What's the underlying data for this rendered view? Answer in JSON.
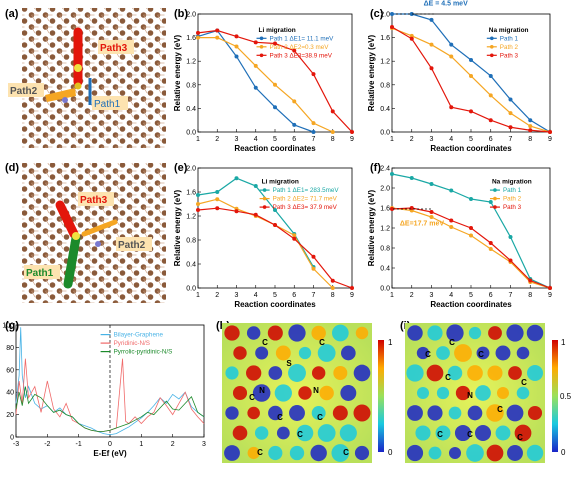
{
  "panel_labels": [
    "(a)",
    "(b)",
    "(c)",
    "(d)",
    "(e)",
    "(f)",
    "(g)",
    "(h)",
    "(i)"
  ],
  "colors": {
    "teal": "#1aa8a5",
    "orange": "#f5a623",
    "red": "#e3160b",
    "blue": "#1f6fb8",
    "dos_blue": "#49b3e6",
    "dos_red": "#f06a6a",
    "dos_green": "#1c8a2b"
  },
  "structure_a": {
    "labels": [
      "Path3",
      "Path2",
      "Path1"
    ]
  },
  "structure_d": {
    "labels": [
      "Path3",
      "Path2",
      "Path1"
    ]
  },
  "contour_h": {
    "atom_labels": [
      "C",
      "S",
      "C",
      "C",
      "N",
      "N",
      "C",
      "C",
      "C",
      "C",
      "C"
    ],
    "colorbar_ticks": [
      "1",
      "0"
    ]
  },
  "contour_i": {
    "atom_labels": [
      "C",
      "C",
      "C",
      "C",
      "N",
      "C",
      "C",
      "C",
      "C",
      "C"
    ],
    "colorbar_ticks": [
      "1",
      "0.5",
      "0"
    ]
  },
  "chart_data": [
    {
      "id": "b",
      "type": "line",
      "title": "",
      "xlabel": "Reaction coordinates",
      "ylabel": "Relative energy (eV)",
      "legend_title": "Li migration",
      "x": [
        1,
        2,
        3,
        4,
        5,
        6,
        7,
        8,
        9
      ],
      "xlim": [
        1,
        9
      ],
      "ylim": [
        0,
        2.0
      ],
      "yticks": [
        0,
        0.4,
        0.8,
        1.2,
        1.6,
        2.0
      ],
      "series": [
        {
          "name": "Path 1 ΔE1= 11.1 meV",
          "color": "blue",
          "x": [
            1,
            2,
            3,
            4,
            5,
            6,
            7
          ],
          "values": [
            1.62,
            1.72,
            1.28,
            0.75,
            0.42,
            0.12,
            0.0
          ]
        },
        {
          "name": "Path 2 ΔE2=0.3 meV",
          "color": "orange",
          "x": [
            1,
            2,
            3,
            4,
            5,
            6,
            7,
            8
          ],
          "values": [
            1.6,
            1.6,
            1.45,
            1.12,
            0.8,
            0.52,
            0.15,
            0.0
          ]
        },
        {
          "name": "Path 3 ΔE3=38.9 meV",
          "color": "red",
          "x": [
            1,
            2,
            3,
            4,
            5,
            6,
            7,
            8,
            9
          ],
          "values": [
            1.68,
            1.72,
            1.62,
            1.52,
            1.5,
            1.38,
            0.98,
            0.35,
            0.0
          ]
        }
      ]
    },
    {
      "id": "c",
      "type": "line",
      "title": "",
      "xlabel": "Reaction coordinates",
      "ylabel": "Relative energy (eV)",
      "legend_title": "Na migration",
      "annotation": "ΔE = 4.5 meV",
      "x": [
        1,
        2,
        3,
        4,
        5,
        6,
        7,
        8,
        9
      ],
      "xlim": [
        1,
        9
      ],
      "ylim": [
        0,
        2.0
      ],
      "yticks": [
        0,
        0.4,
        0.8,
        1.2,
        1.6,
        2.0
      ],
      "series": [
        {
          "name": "Path 1",
          "color": "blue",
          "x": [
            1,
            2,
            3,
            4,
            5,
            6,
            7,
            8,
            9
          ],
          "values": [
            2.0,
            2.0,
            1.9,
            1.48,
            1.22,
            0.95,
            0.55,
            0.2,
            0.0
          ]
        },
        {
          "name": "Path 2",
          "color": "orange",
          "x": [
            1,
            2,
            3,
            4,
            5,
            6,
            7,
            8,
            9
          ],
          "values": [
            1.76,
            1.63,
            1.48,
            1.28,
            0.95,
            0.62,
            0.32,
            0.1,
            0.0
          ]
        },
        {
          "name": "Path 3",
          "color": "red",
          "x": [
            1,
            2,
            3,
            4,
            5,
            6,
            7,
            8,
            9
          ],
          "values": [
            1.78,
            1.58,
            1.08,
            0.42,
            0.35,
            0.2,
            0.08,
            0.03,
            0.0
          ]
        }
      ]
    },
    {
      "id": "e",
      "type": "line",
      "title": "",
      "xlabel": "Reaction coordinates",
      "ylabel": "Relative energy (eV)",
      "legend_title": "Li migration",
      "x": [
        1,
        2,
        3,
        4,
        5,
        6,
        7,
        8,
        9
      ],
      "xlim": [
        1,
        9
      ],
      "ylim": [
        0,
        2.0
      ],
      "yticks": [
        0,
        0.4,
        0.8,
        1.2,
        1.6,
        2.0
      ],
      "series": [
        {
          "name": "Path 1 ΔE1= 283.5meV",
          "color": "teal",
          "x": [
            1,
            2,
            3,
            4,
            5,
            6,
            7
          ],
          "values": [
            1.55,
            1.6,
            1.83,
            1.7,
            1.3,
            0.9,
            0.35
          ]
        },
        {
          "name": "Path 2 ΔE2= 71.7 meV",
          "color": "orange",
          "x": [
            1,
            2,
            3,
            4,
            5,
            6,
            7,
            8
          ],
          "values": [
            1.4,
            1.48,
            1.32,
            1.2,
            1.05,
            0.88,
            0.32,
            0.0
          ]
        },
        {
          "name": "Path 3 ΔE3= 37.9 meV",
          "color": "red",
          "x": [
            1,
            2,
            3,
            4,
            5,
            6,
            7,
            8,
            9
          ],
          "values": [
            1.3,
            1.33,
            1.28,
            1.22,
            1.05,
            0.82,
            0.52,
            0.12,
            0.0
          ]
        }
      ]
    },
    {
      "id": "f",
      "type": "line",
      "title": "",
      "xlabel": "Reaction coordinates",
      "ylabel": "Relative energy (eV)",
      "legend_title": "Na migration",
      "annotation": "ΔE=17.7 meV",
      "x": [
        1,
        2,
        3,
        4,
        5,
        6,
        7,
        8,
        9
      ],
      "xlim": [
        1,
        9
      ],
      "ylim": [
        0,
        2.4
      ],
      "yticks": [
        0,
        0.4,
        0.8,
        1.2,
        1.6,
        2.0,
        2.4
      ],
      "series": [
        {
          "name": "Path 1",
          "color": "teal",
          "x": [
            1,
            2,
            3,
            4,
            5,
            6,
            7,
            8,
            9
          ],
          "values": [
            2.28,
            2.2,
            2.08,
            1.95,
            1.78,
            1.72,
            1.02,
            0.18,
            0.0
          ]
        },
        {
          "name": "Path 2",
          "color": "orange",
          "x": [
            1,
            2,
            3,
            4,
            5,
            6,
            7,
            8,
            9
          ],
          "values": [
            1.6,
            1.55,
            1.42,
            1.22,
            1.05,
            0.78,
            0.52,
            0.12,
            0.0
          ]
        },
        {
          "name": "Path 3",
          "color": "red",
          "x": [
            1,
            2,
            3,
            4,
            5,
            6,
            7,
            8,
            9
          ],
          "values": [
            1.58,
            1.6,
            1.52,
            1.35,
            1.2,
            0.9,
            0.55,
            0.15,
            0.0
          ]
        }
      ]
    },
    {
      "id": "g",
      "type": "line",
      "title": "",
      "xlabel": "E-Ef (eV)",
      "ylabel": "DOS",
      "xlim": [
        -3,
        3
      ],
      "ylim": [
        0,
        100
      ],
      "xticks": [
        -3,
        -2,
        -1,
        0,
        1,
        2,
        3
      ],
      "yticks": [
        0,
        20,
        40,
        60,
        80,
        100
      ],
      "series": [
        {
          "name": "Bilayer-Graphene",
          "color": "dos_blue",
          "x": [
            -3.0,
            -2.9,
            -2.85,
            -2.8,
            -2.7,
            -2.6,
            -2.4,
            -2.2,
            -2.0,
            -1.8,
            -1.6,
            -1.4,
            -1.2,
            -1.0,
            -0.8,
            -0.6,
            -0.4,
            -0.2,
            0.0,
            0.2,
            0.4,
            0.6,
            0.8,
            1.0,
            1.2,
            1.4,
            1.6,
            1.8,
            2.0,
            2.2,
            2.4,
            2.6,
            2.8,
            3.0
          ],
          "values": [
            30,
            55,
            98,
            55,
            35,
            45,
            30,
            25,
            28,
            22,
            26,
            20,
            18,
            12,
            10,
            8,
            5,
            3,
            2,
            3,
            6,
            9,
            13,
            17,
            22,
            28,
            35,
            30,
            38,
            34,
            40,
            27,
            22,
            18
          ]
        },
        {
          "name": "Pyridinic-N/S",
          "color": "dos_red",
          "x": [
            -3.0,
            -2.9,
            -2.8,
            -2.7,
            -2.6,
            -2.4,
            -2.2,
            -2.0,
            -1.8,
            -1.6,
            -1.4,
            -1.2,
            -1.0,
            -0.8,
            -0.6,
            -0.4,
            -0.2,
            0.0,
            0.2,
            0.4,
            0.5,
            0.6,
            0.8,
            1.0,
            1.2,
            1.4,
            1.6,
            1.8,
            2.0,
            2.2,
            2.4,
            2.6,
            2.8,
            3.0
          ],
          "values": [
            20,
            50,
            30,
            70,
            35,
            45,
            22,
            50,
            25,
            18,
            30,
            15,
            12,
            8,
            6,
            5,
            5,
            6,
            8,
            70,
            14,
            12,
            18,
            12,
            18,
            22,
            35,
            28,
            20,
            30,
            40,
            25,
            18,
            12
          ]
        },
        {
          "name": "Pyrrolic-pyridinic-N/S",
          "color": "dos_green",
          "x": [
            -3.0,
            -2.9,
            -2.8,
            -2.7,
            -2.6,
            -2.4,
            -2.2,
            -2.0,
            -1.8,
            -1.6,
            -1.4,
            -1.2,
            -1.0,
            -0.8,
            -0.6,
            -0.4,
            -0.2,
            0.0,
            0.2,
            0.4,
            0.6,
            0.8,
            1.0,
            1.2,
            1.4,
            1.6,
            1.8,
            2.0,
            2.2,
            2.4,
            2.6,
            2.8,
            3.0
          ],
          "values": [
            25,
            40,
            28,
            45,
            30,
            38,
            35,
            28,
            22,
            24,
            20,
            18,
            12,
            8,
            6,
            5,
            5,
            6,
            8,
            10,
            12,
            15,
            18,
            22,
            20,
            26,
            32,
            25,
            24,
            30,
            36,
            22,
            18
          ]
        }
      ]
    }
  ]
}
